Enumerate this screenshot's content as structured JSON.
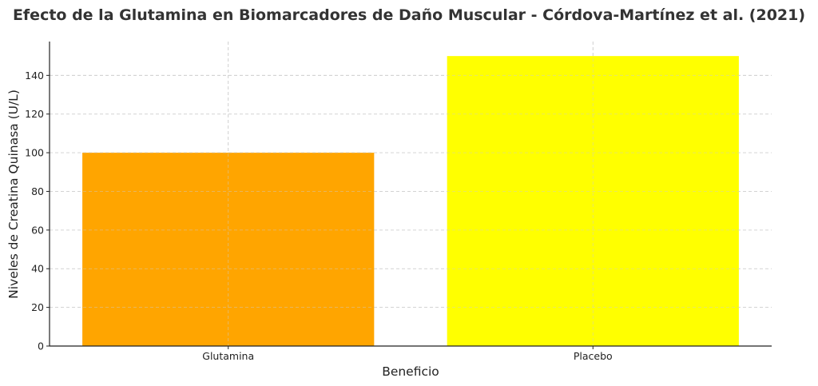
{
  "chart_data": {
    "type": "bar",
    "title": "Efecto de la Glutamina en Biomarcadores de Daño Muscular - Córdova-Martínez et al. (2021)",
    "xlabel": "Beneficio",
    "ylabel": "Niveles de Creatina Quinasa (U/L)",
    "categories": [
      "Glutamina",
      "Placebo"
    ],
    "values": [
      100,
      150
    ],
    "colors": [
      "#FFA500",
      "#FFFF00"
    ],
    "ylim": [
      0,
      157.5
    ],
    "yticks": [
      0,
      20,
      40,
      60,
      80,
      100,
      120,
      140
    ],
    "grid": true,
    "legend": "none"
  }
}
